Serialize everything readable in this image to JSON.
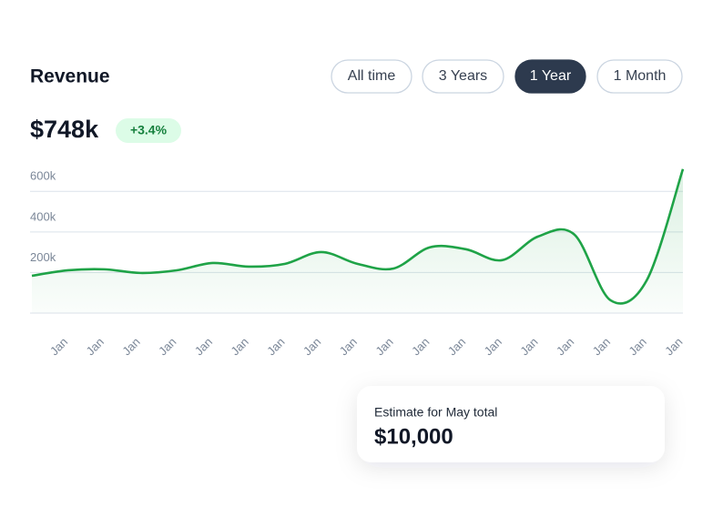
{
  "header": {
    "title": "Revenue",
    "filters": [
      "All time",
      "3 Years",
      "1 Year",
      "1 Month"
    ],
    "selected_filter": 2
  },
  "summary": {
    "value": "$748k",
    "change": "+3.4%"
  },
  "chart_data": {
    "type": "area",
    "categories": [
      null,
      "Jan",
      "Jan",
      "Jan",
      "Jan",
      "Jan",
      "Jan",
      "Jan",
      "Jan",
      "Jan",
      "Jan",
      "Jan",
      "Jan",
      "Jan",
      "Jan",
      "Jan",
      "Jan",
      "Jan",
      "Jan"
    ],
    "values": [
      184000,
      211000,
      216000,
      198000,
      211000,
      247000,
      229000,
      243000,
      301000,
      243000,
      220000,
      324000,
      315000,
      261000,
      378000,
      387000,
      63000,
      162000,
      710000
    ],
    "color": "#1fa347",
    "ylim": [
      0,
      700000
    ],
    "yticks": [
      {
        "value": 200000,
        "label": "200k"
      },
      {
        "value": 400000,
        "label": "400k"
      },
      {
        "value": 600000,
        "label": "600k"
      }
    ],
    "grid": true
  },
  "tooltip": {
    "label": "Estimate for May total",
    "value": "$10,000"
  }
}
